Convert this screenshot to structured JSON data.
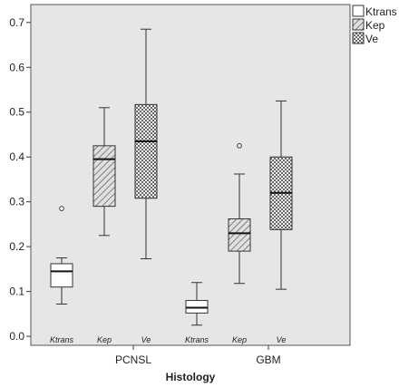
{
  "chart_data": {
    "type": "boxplot",
    "title": "",
    "xlabel": "Histology",
    "ylabel": "",
    "ylim": [
      -0.02,
      0.74
    ],
    "yticks": [
      0.0,
      0.1,
      0.2,
      0.3,
      0.4,
      0.5,
      0.6,
      0.7
    ],
    "ytick_labels": [
      "0.0",
      "0.1",
      "0.2",
      "0.3",
      "0.4",
      "0.5",
      "0.6",
      "0.7"
    ],
    "categories": [
      "PCNSL",
      "GBM"
    ],
    "legend_position": "top-right, outside plot",
    "grid": false,
    "plot_background": "#e6e6e6",
    "series": [
      {
        "name": "Ktrans",
        "pattern": "plain",
        "fill": "#ffffff",
        "boxes": [
          {
            "category": "PCNSL",
            "label": "Ktrans",
            "min": 0.072,
            "q1": 0.11,
            "median": 0.145,
            "q3": 0.162,
            "max": 0.175,
            "outliers": [
              0.285
            ]
          },
          {
            "category": "GBM",
            "label": "Ktrans",
            "min": 0.025,
            "q1": 0.052,
            "median": 0.064,
            "q3": 0.08,
            "max": 0.12,
            "outliers": []
          }
        ]
      },
      {
        "name": "Kep",
        "pattern": "diagonal hatch",
        "fill": "#bdbdbd",
        "boxes": [
          {
            "category": "PCNSL",
            "label": "Kep",
            "min": 0.225,
            "q1": 0.29,
            "median": 0.395,
            "q3": 0.425,
            "max": 0.51,
            "outliers": []
          },
          {
            "category": "GBM",
            "label": "Kep",
            "min": 0.118,
            "q1": 0.19,
            "median": 0.23,
            "q3": 0.262,
            "max": 0.362,
            "outliers": [
              0.425
            ]
          }
        ]
      },
      {
        "name": "Ve",
        "pattern": "dotted",
        "fill": "#d6d6d6",
        "boxes": [
          {
            "category": "PCNSL",
            "label": "Ve",
            "min": 0.173,
            "q1": 0.308,
            "median": 0.435,
            "q3": 0.517,
            "max": 0.685,
            "outliers": []
          },
          {
            "category": "GBM",
            "label": "Ve",
            "min": 0.105,
            "q1": 0.238,
            "median": 0.32,
            "q3": 0.4,
            "max": 0.525,
            "outliers": []
          }
        ]
      }
    ]
  }
}
